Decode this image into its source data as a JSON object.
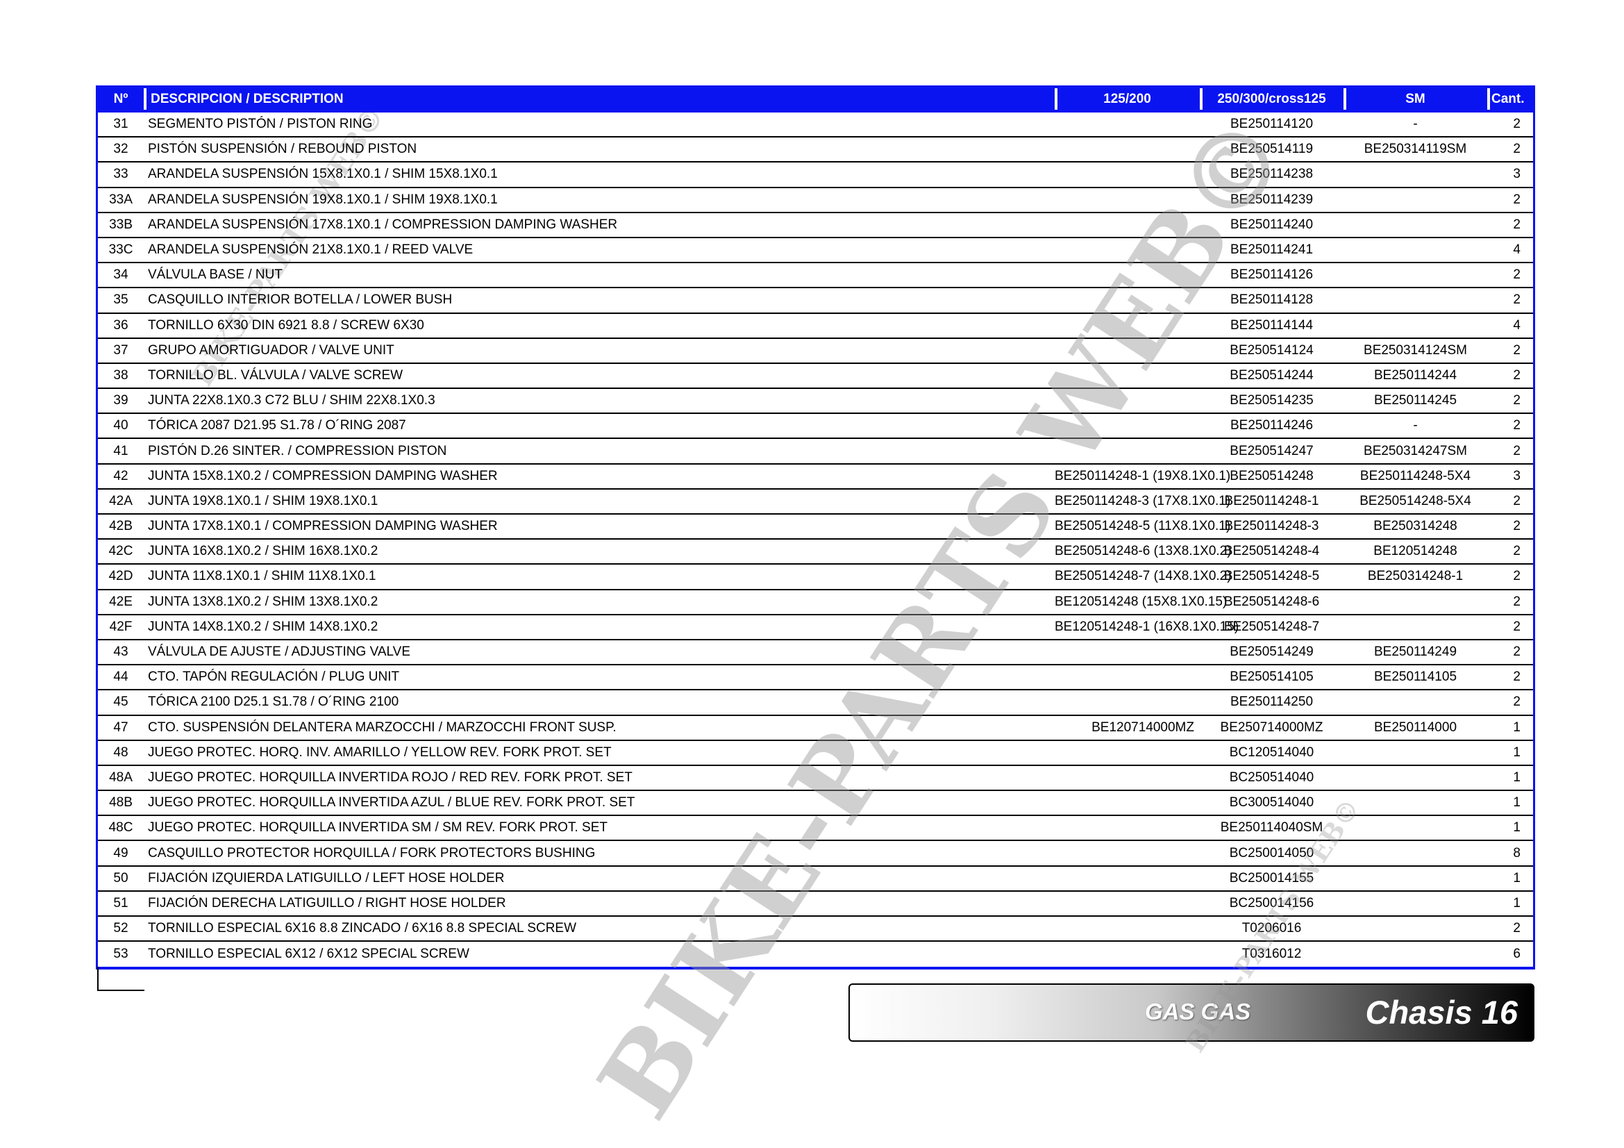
{
  "table": {
    "headers": [
      "Nº",
      "DESCRIPCION / DESCRIPTION",
      "125/200",
      "250/300/cross125",
      "SM",
      "Cant."
    ],
    "header_color": "#0a14f0",
    "rows": [
      [
        "31",
        "SEGMENTO PISTÓN / PISTON RING",
        "",
        "BE250114120",
        "-",
        "2"
      ],
      [
        "32",
        "PISTÓN SUSPENSIÓN / REBOUND PISTON",
        "",
        "BE250514119",
        "BE250314119SM",
        "2"
      ],
      [
        "33",
        "ARANDELA SUSPENSIÓN 15X8.1X0.1 / SHIM 15X8.1X0.1",
        "",
        "BE250114238",
        "",
        "3"
      ],
      [
        "33A",
        "ARANDELA SUSPENSIÓN 19X8.1X0.1 / SHIM 19X8.1X0.1",
        "",
        "BE250114239",
        "",
        "2"
      ],
      [
        "33B",
        "ARANDELA SUSPENSIÓN 17X8.1X0.1 / COMPRESSION DAMPING WASHER",
        "",
        "BE250114240",
        "",
        "2"
      ],
      [
        "33C",
        "ARANDELA SUSPENSIÓN 21X8.1X0.1 / REED VALVE",
        "",
        "BE250114241",
        "",
        "4"
      ],
      [
        "34",
        "VÁLVULA BASE / NUT",
        "",
        "BE250114126",
        "",
        "2"
      ],
      [
        "35",
        "CASQUILLO INTERIOR BOTELLA / LOWER BUSH",
        "",
        "BE250114128",
        "",
        "2"
      ],
      [
        "36",
        "TORNILLO 6X30 DIN 6921 8.8 / SCREW 6X30",
        "",
        "BE250114144",
        "",
        "4"
      ],
      [
        "37",
        "GRUPO AMORTIGUADOR / VALVE UNIT",
        "",
        "BE250514124",
        "BE250314124SM",
        "2"
      ],
      [
        "38",
        "TORNILLO BL. VÁLVULA / VALVE SCREW",
        "",
        "BE250514244",
        "BE250114244",
        "2"
      ],
      [
        "39",
        "JUNTA 22X8.1X0.3 C72 BLU / SHIM 22X8.1X0.3",
        "",
        "BE250514235",
        "BE250114245",
        "2"
      ],
      [
        "40",
        "TÓRICA 2087 D21.95 S1.78 / O´RING 2087",
        "",
        "BE250114246",
        "-",
        "2"
      ],
      [
        "41",
        "PISTÓN D.26 SINTER. / COMPRESSION PISTON",
        "",
        "BE250514247",
        "BE250314247SM",
        "2"
      ],
      [
        "42",
        "JUNTA 15X8.1X0.2 / COMPRESSION DAMPING WASHER",
        "BE250114248-1 (19X8.1X0.1)",
        "BE250514248",
        "BE250114248-5X4",
        "3"
      ],
      [
        "42A",
        "JUNTA 19X8.1X0.1 / SHIM 19X8.1X0.1",
        "BE250114248-3 (17X8.1X0.1)",
        "BE250114248-1",
        "BE250514248-5X4",
        "2"
      ],
      [
        "42B",
        "JUNTA 17X8.1X0.1 / COMPRESSION DAMPING WASHER",
        "BE250514248-5 (11X8.1X0.1)",
        "BE250114248-3",
        "BE250314248",
        "2"
      ],
      [
        "42C",
        "JUNTA 16X8.1X0.2 / SHIM 16X8.1X0.2",
        "BE250514248-6 (13X8.1X0.2)",
        "BE250514248-4",
        "BE120514248",
        "2"
      ],
      [
        "42D",
        "JUNTA 11X8.1X0.1 / SHIM 11X8.1X0.1",
        "BE250514248-7 (14X8.1X0.2)",
        "BE250514248-5",
        "BE250314248-1",
        "2"
      ],
      [
        "42E",
        "JUNTA 13X8.1X0.2 / SHIM 13X8.1X0.2",
        "BE120514248 (15X8.1X0.15)",
        "BE250514248-6",
        "",
        "2"
      ],
      [
        "42F",
        "JUNTA 14X8.1X0.2 / SHIM 14X8.1X0.2",
        "BE120514248-1 (16X8.1X0.15)",
        "BE250514248-7",
        "",
        "2"
      ],
      [
        "43",
        "VÁLVULA DE AJUSTE / ADJUSTING VALVE",
        "",
        "BE250514249",
        "BE250114249",
        "2"
      ],
      [
        "44",
        "CTO. TAPÓN REGULACIÓN / PLUG UNIT",
        "",
        "BE250514105",
        "BE250114105",
        "2"
      ],
      [
        "45",
        "TÓRICA 2100 D25.1 S1.78 / O´RING 2100",
        "",
        "BE250114250",
        "",
        "2"
      ],
      [
        "47",
        "CTO. SUSPENSIÓN DELANTERA MARZOCCHI / MARZOCCHI FRONT SUSP.",
        "BE120714000MZ",
        "BE250714000MZ",
        "BE250114000",
        "1"
      ],
      [
        "48",
        "JUEGO PROTEC. HORQ. INV. AMARILLO / YELLOW REV. FORK PROT. SET",
        "",
        "BC120514040",
        "",
        "1"
      ],
      [
        "48A",
        "JUEGO PROTEC. HORQUILLA INVERTIDA ROJO / RED REV. FORK PROT. SET",
        "",
        "BC250514040",
        "",
        "1"
      ],
      [
        "48B",
        "JUEGO PROTEC. HORQUILLA INVERTIDA AZUL / BLUE REV. FORK PROT. SET",
        "",
        "BC300514040",
        "",
        "1"
      ],
      [
        "48C",
        "JUEGO PROTEC. HORQUILLA INVERTIDA SM / SM REV. FORK PROT. SET",
        "",
        "BE250114040SM",
        "",
        "1"
      ],
      [
        "49",
        "CASQUILLO PROTECTOR HORQUILLA / FORK PROTECTORS BUSHING",
        "",
        "BC250014050",
        "",
        "8"
      ],
      [
        "50",
        "FIJACIÓN IZQUIERDA LATIGUILLO / LEFT HOSE HOLDER",
        "",
        "BC250014155",
        "",
        "1"
      ],
      [
        "51",
        "FIJACIÓN DERECHA LATIGUILLO / RIGHT HOSE HOLDER",
        "",
        "BC250014156",
        "",
        "1"
      ],
      [
        "52",
        "TORNILLO ESPECIAL 6X16 8.8 ZINCADO / 6X16 8.8 SPECIAL SCREW",
        "",
        "T0206016",
        "",
        "2"
      ],
      [
        "53",
        "TORNILLO ESPECIAL 6X12 / 6X12 SPECIAL SCREW",
        "",
        "T0316012",
        "",
        "6"
      ]
    ]
  },
  "footer": {
    "brand": "GAS GAS",
    "section": "Chasis 16"
  },
  "watermark": {
    "text": "BIKE-PARTS WEB©"
  }
}
